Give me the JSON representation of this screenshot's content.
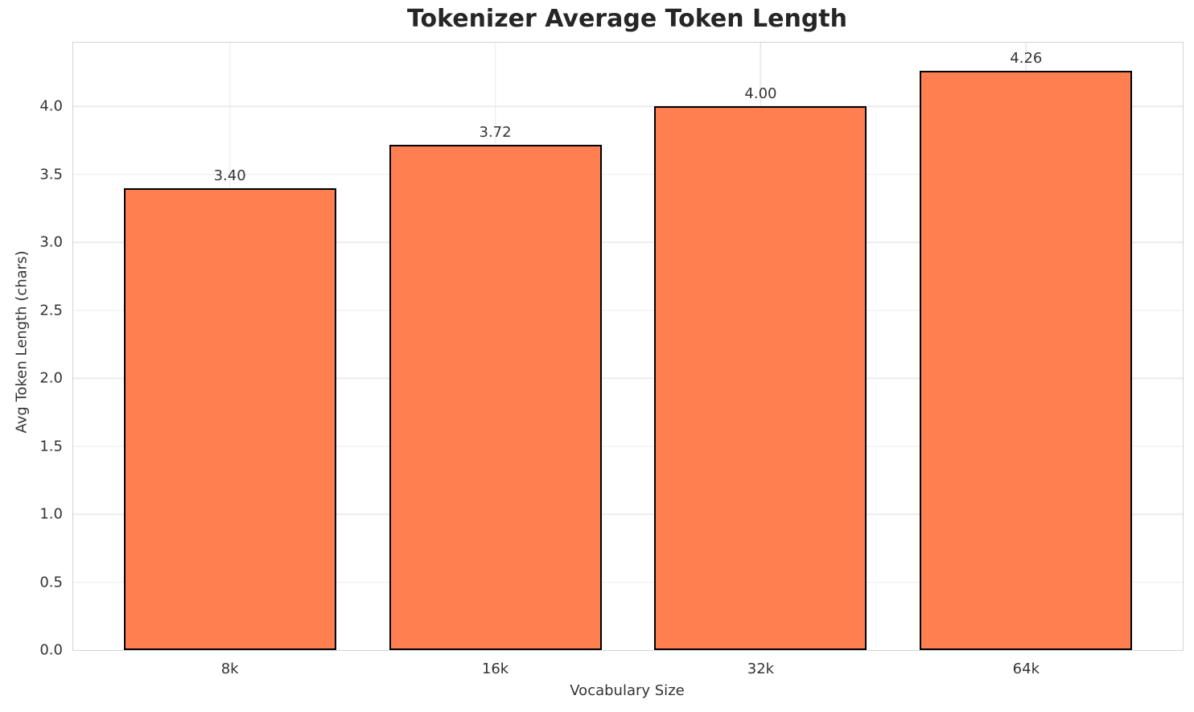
{
  "chart_data": {
    "type": "bar",
    "title": "Tokenizer Average Token Length",
    "xlabel": "Vocabulary Size",
    "ylabel": "Avg Token Length (chars)",
    "categories": [
      "8k",
      "16k",
      "32k",
      "64k"
    ],
    "values": [
      3.4,
      3.72,
      4.0,
      4.26
    ],
    "value_labels": [
      "3.40",
      "3.72",
      "4.00",
      "4.26"
    ],
    "ytick_labels": [
      "0.0",
      "0.5",
      "1.0",
      "1.5",
      "2.0",
      "2.5",
      "3.0",
      "3.5",
      "4.0"
    ],
    "yticks": [
      0.0,
      0.5,
      1.0,
      1.5,
      2.0,
      2.5,
      3.0,
      3.5,
      4.0
    ],
    "ylim": [
      0,
      4.47
    ],
    "grid": true,
    "legend": "none",
    "bar_width_fraction": 0.8,
    "bar_color": "#FF7F50",
    "bar_edge_color": "#000000"
  }
}
